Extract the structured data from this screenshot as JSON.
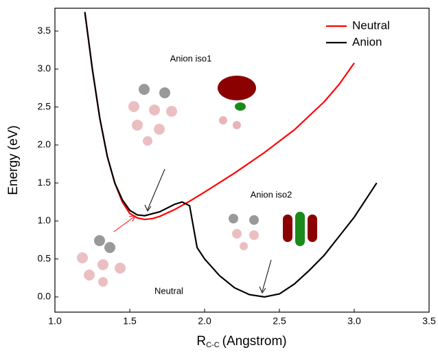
{
  "chart_data": {
    "type": "line",
    "xlabel": "R",
    "xlabel_subscript": "C-C",
    "xlabel_unit": "(Angstrom)",
    "ylabel": "Energy (eV)",
    "xlim": [
      1.0,
      3.5
    ],
    "ylim": [
      -0.2,
      3.8
    ],
    "xticks": [
      {
        "value": 1,
        "label": "1.0"
      },
      {
        "value": 1.5,
        "label": "1.5"
      },
      {
        "value": 2,
        "label": "2.0"
      },
      {
        "value": 2.5,
        "label": "2.5"
      },
      {
        "value": 3,
        "label": "3.0"
      },
      {
        "value": 3.5,
        "label": "3.5"
      }
    ],
    "yticks": [
      {
        "value": 0,
        "label": "0.0"
      },
      {
        "value": 0.5,
        "label": "0.5"
      },
      {
        "value": 1,
        "label": "1.0"
      },
      {
        "value": 1.5,
        "label": "1.5"
      },
      {
        "value": 2,
        "label": "2.0"
      },
      {
        "value": 2.5,
        "label": "2.5"
      },
      {
        "value": 3,
        "label": "3.0"
      },
      {
        "value": 3.5,
        "label": "3.5"
      }
    ],
    "legend": "upper right",
    "annotations": [
      "Anion iso1",
      "Anion iso2",
      "Neutral"
    ],
    "series": [
      {
        "name": "Neutral",
        "color": "#ff0000",
        "x": [
          1.2,
          1.25,
          1.3,
          1.35,
          1.4,
          1.45,
          1.5,
          1.55,
          1.6,
          1.65,
          1.7,
          1.8,
          1.9,
          2.0,
          2.2,
          2.4,
          2.6,
          2.8,
          2.9,
          3.0
        ],
        "values": [
          3.75,
          3.0,
          2.35,
          1.85,
          1.5,
          1.25,
          1.1,
          1.04,
          1.02,
          1.03,
          1.06,
          1.15,
          1.26,
          1.38,
          1.63,
          1.9,
          2.2,
          2.57,
          2.8,
          3.08
        ]
      },
      {
        "name": "Anion",
        "color": "#000000",
        "x": [
          1.2,
          1.25,
          1.3,
          1.35,
          1.4,
          1.45,
          1.5,
          1.55,
          1.6,
          1.7,
          1.8,
          1.85,
          1.9,
          1.95,
          2.0,
          2.1,
          2.2,
          2.3,
          2.4,
          2.5,
          2.6,
          2.7,
          2.8,
          2.9,
          3.0,
          3.1,
          3.15
        ],
        "values": [
          3.75,
          3.0,
          2.35,
          1.85,
          1.5,
          1.28,
          1.14,
          1.08,
          1.07,
          1.12,
          1.22,
          1.25,
          1.2,
          0.65,
          0.5,
          0.28,
          0.12,
          0.03,
          0.0,
          0.04,
          0.17,
          0.35,
          0.55,
          0.8,
          1.05,
          1.35,
          1.5
        ]
      }
    ]
  }
}
